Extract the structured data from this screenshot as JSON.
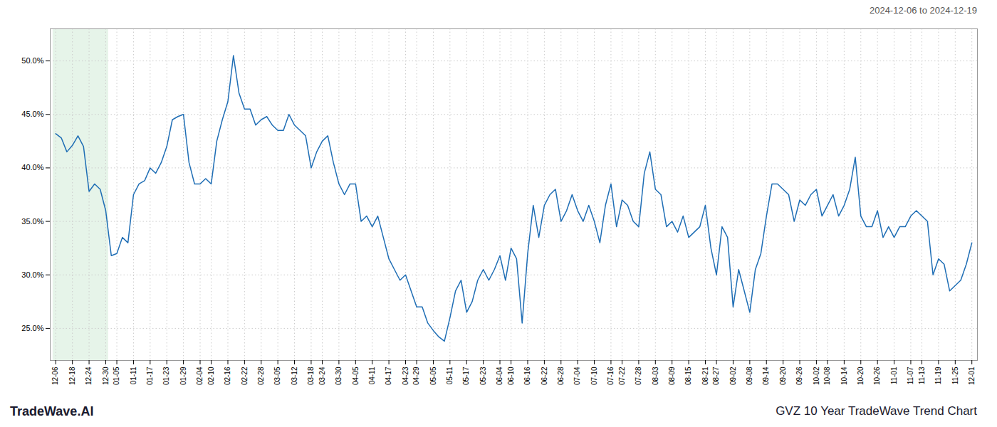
{
  "chart_data": {
    "type": "line",
    "title": "GVZ 10 Year TradeWave Trend Chart",
    "subtitle": "2024-12-06 to 2024-12-19",
    "annotations": [
      {
        "text": "TradeWave.AI"
      }
    ],
    "color": "#1f6eb5",
    "grid": true,
    "highlight": {
      "x": [
        0,
        9
      ],
      "color": "#d6edda"
    },
    "ylim": [
      22.0,
      53.0
    ],
    "yticks": [
      {
        "value": 25.0,
        "label": "25.0%"
      },
      {
        "value": 30.0,
        "label": "30.0%"
      },
      {
        "value": 35.0,
        "label": "35.0%"
      },
      {
        "value": 40.0,
        "label": "40.0%"
      },
      {
        "value": 45.0,
        "label": "45.0%"
      },
      {
        "value": 50.0,
        "label": "50.0%"
      }
    ],
    "categories": [
      "12-06",
      null,
      null,
      "12-18",
      null,
      null,
      "12-24",
      null,
      null,
      "12-30",
      null,
      "01-05",
      null,
      null,
      "01-11",
      null,
      null,
      "01-17",
      null,
      null,
      "01-23",
      null,
      null,
      "01-29",
      null,
      null,
      "02-04",
      null,
      "02-10",
      null,
      null,
      "02-16",
      null,
      null,
      "02-22",
      null,
      null,
      "02-28",
      null,
      null,
      "03-05",
      null,
      null,
      "03-12",
      null,
      null,
      "03-18",
      null,
      "03-24",
      null,
      null,
      "03-30",
      null,
      null,
      "04-05",
      null,
      null,
      "04-11",
      null,
      null,
      "04-17",
      null,
      null,
      "04-23",
      null,
      "04-29",
      null,
      null,
      "05-05",
      null,
      null,
      "05-11",
      null,
      null,
      "05-17",
      null,
      null,
      "05-23",
      null,
      null,
      "06-04",
      null,
      "06-10",
      null,
      null,
      "06-16",
      null,
      null,
      "06-22",
      null,
      null,
      "06-28",
      null,
      null,
      "07-04",
      null,
      null,
      "07-10",
      null,
      null,
      "07-16",
      null,
      "07-22",
      null,
      null,
      "07-28",
      null,
      null,
      "08-03",
      null,
      null,
      "08-09",
      null,
      null,
      "08-15",
      null,
      null,
      "08-21",
      null,
      "08-27",
      null,
      null,
      "09-02",
      null,
      null,
      "09-08",
      null,
      null,
      "09-14",
      null,
      null,
      "09-20",
      null,
      null,
      "09-26",
      null,
      null,
      "10-02",
      null,
      "10-08",
      null,
      null,
      "10-14",
      null,
      null,
      "10-20",
      null,
      null,
      "10-26",
      null,
      null,
      "11-01",
      null,
      null,
      "11-07",
      null,
      "11-13",
      null,
      null,
      "11-19",
      null,
      null,
      "11-25",
      null,
      null,
      "12-01"
    ],
    "values": [
      43.2,
      42.8,
      41.5,
      42.1,
      43.0,
      42.0,
      37.8,
      38.5,
      38.0,
      36.0,
      31.8,
      32.0,
      33.5,
      33.0,
      37.5,
      38.5,
      38.8,
      40.0,
      39.5,
      40.5,
      42.0,
      44.5,
      44.8,
      45.0,
      40.5,
      38.5,
      38.5,
      39.0,
      38.5,
      42.5,
      44.5,
      46.2,
      50.5,
      47.0,
      45.5,
      45.5,
      44.0,
      44.5,
      44.8,
      44.0,
      43.5,
      43.5,
      45.0,
      44.0,
      43.5,
      43.0,
      40.0,
      41.5,
      42.5,
      43.0,
      40.5,
      38.5,
      37.5,
      38.5,
      38.5,
      35.0,
      35.5,
      34.5,
      35.5,
      33.5,
      31.5,
      30.5,
      29.5,
      30.0,
      28.5,
      27.0,
      27.0,
      25.5,
      24.8,
      24.2,
      23.8,
      26.0,
      28.5,
      29.5,
      26.5,
      27.5,
      29.5,
      30.5,
      29.5,
      30.5,
      31.8,
      29.5,
      32.5,
      31.5,
      25.5,
      32.0,
      36.5,
      33.5,
      36.5,
      37.5,
      38.0,
      35.0,
      36.0,
      37.5,
      36.0,
      35.0,
      36.5,
      35.0,
      33.0,
      36.5,
      38.5,
      34.5,
      37.0,
      36.5,
      35.0,
      34.5,
      39.5,
      41.5,
      38.0,
      37.5,
      34.5,
      35.0,
      34.0,
      35.5,
      33.5,
      34.0,
      34.5,
      36.5,
      32.5,
      30.0,
      34.5,
      33.5,
      27.0,
      30.5,
      28.5,
      26.5,
      30.5,
      32.0,
      35.5,
      38.5,
      38.5,
      38.0,
      37.5,
      35.0,
      37.0,
      36.5,
      37.5,
      38.0,
      35.5,
      36.5,
      37.5,
      35.5,
      36.5,
      38.0,
      41.0,
      35.5,
      34.5,
      34.5,
      36.0,
      33.5,
      34.5,
      33.5,
      34.5,
      34.5,
      35.5,
      36.0,
      35.5,
      35.0,
      30.0,
      31.5,
      31.0,
      28.5,
      29.0,
      29.5,
      31.0,
      33.0
    ]
  }
}
